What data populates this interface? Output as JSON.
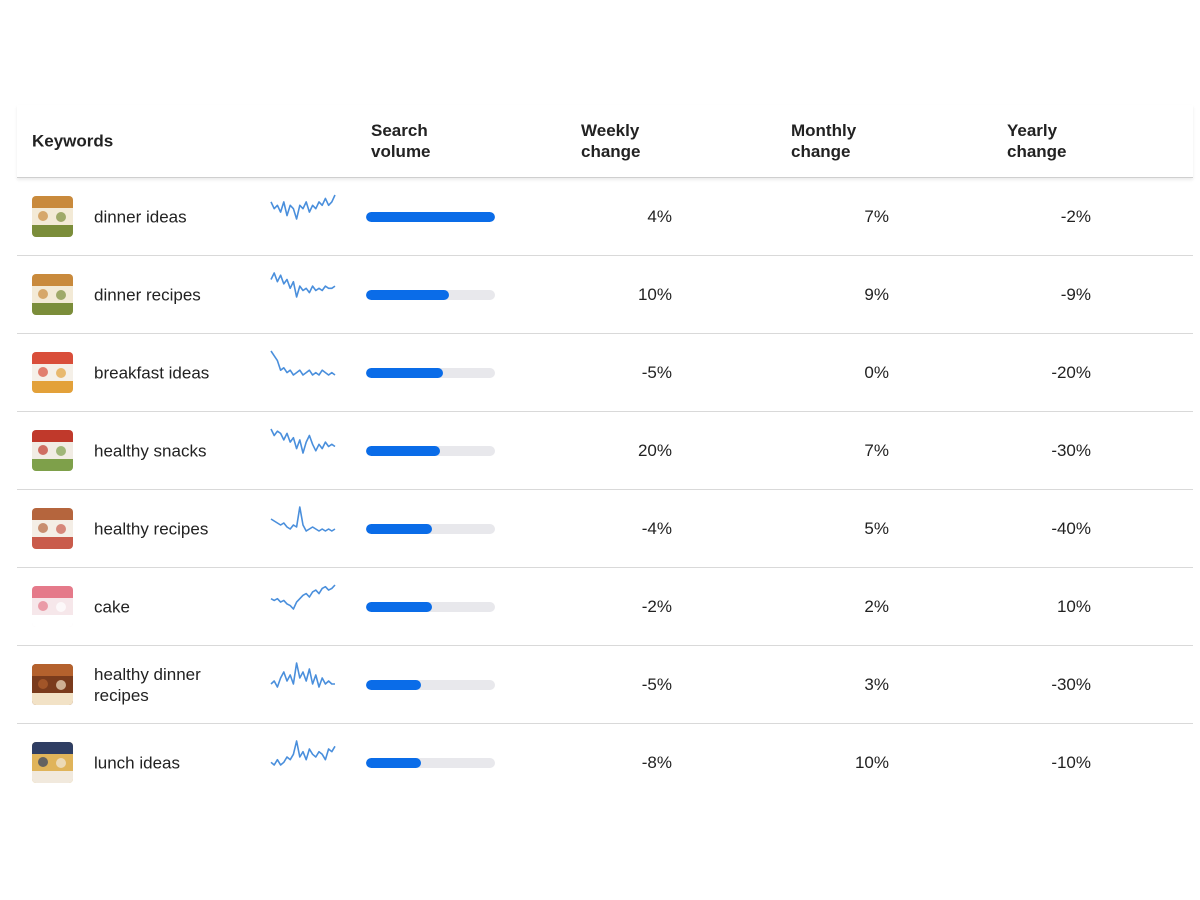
{
  "header": {
    "keywords": "Keywords",
    "search_volume": "Search\nvolume",
    "weekly_change": "Weekly\nchange",
    "monthly_change": "Monthly\nchange",
    "yearly_change": "Yearly\nchange"
  },
  "colors": {
    "accent": "#0a6ce8",
    "track": "#e8e8ec",
    "sparkline": "#4a8fdc"
  },
  "rows": [
    {
      "keyword": "dinner ideas",
      "volume_fraction": 1.0,
      "weekly": "4%",
      "monthly": "7%",
      "yearly": "-2%",
      "thumb_icon": "dinner-ideas-thumbnail-icon",
      "thumb_colors": [
        "#c98a3c",
        "#f3ead6",
        "#7b8d3a"
      ],
      "trend": [
        5,
        7,
        6,
        8,
        5,
        9,
        6,
        7,
        10,
        6,
        7,
        5,
        8,
        6,
        7,
        5,
        6,
        4,
        6,
        5,
        3
      ]
    },
    {
      "keyword": "dinner recipes",
      "volume_fraction": 0.64,
      "weekly": "10%",
      "monthly": "9%",
      "yearly": "-9%",
      "thumb_icon": "dinner-recipes-thumbnail-icon",
      "thumb_colors": [
        "#c98a3c",
        "#f3ead6",
        "#7b8d3a"
      ],
      "trend": [
        4,
        1,
        5,
        2,
        6,
        4,
        8,
        5,
        12,
        7,
        9,
        8,
        10,
        7,
        9,
        8,
        9,
        7,
        8,
        8,
        7
      ]
    },
    {
      "keyword": "breakfast ideas",
      "volume_fraction": 0.6,
      "weekly": "-5%",
      "monthly": "0%",
      "yearly": "-20%",
      "thumb_icon": "breakfast-ideas-thumbnail-icon",
      "thumb_colors": [
        "#d94e3a",
        "#f5f0e8",
        "#e3a13a"
      ],
      "trend": [
        1,
        3,
        5,
        9,
        8,
        10,
        9,
        11,
        10,
        9,
        11,
        10,
        9,
        11,
        10,
        11,
        9,
        10,
        11,
        10,
        11
      ]
    },
    {
      "keyword": "healthy snacks",
      "volume_fraction": 0.57,
      "weekly": "20%",
      "monthly": "7%",
      "yearly": "-30%",
      "thumb_icon": "healthy-snacks-thumbnail-icon",
      "thumb_colors": [
        "#c0392b",
        "#f1ece4",
        "#7ea04a"
      ],
      "trend": [
        3,
        6,
        4,
        5,
        8,
        5,
        9,
        7,
        12,
        8,
        14,
        9,
        6,
        10,
        13,
        10,
        12,
        9,
        11,
        10,
        11
      ]
    },
    {
      "keyword": "healthy recipes",
      "volume_fraction": 0.51,
      "weekly": "-4%",
      "monthly": "5%",
      "yearly": "-40%",
      "thumb_icon": "healthy-recipes-thumbnail-icon",
      "thumb_colors": [
        "#b5653d",
        "#f4eee6",
        "#c95b4b"
      ],
      "trend": [
        9,
        10,
        11,
        12,
        11,
        13,
        14,
        12,
        13,
        3,
        12,
        15,
        14,
        13,
        14,
        15,
        14,
        15,
        14,
        15,
        14
      ]
    },
    {
      "keyword": "cake",
      "volume_fraction": 0.51,
      "weekly": "-2%",
      "monthly": "2%",
      "yearly": "10%",
      "thumb_icon": "cake-thumbnail-icon",
      "thumb_colors": [
        "#e57a8a",
        "#f6e7ea",
        "#ffffff"
      ],
      "trend": [
        10,
        11,
        10,
        12,
        11,
        13,
        14,
        16,
        12,
        10,
        8,
        7,
        9,
        6,
        5,
        7,
        4,
        3,
        5,
        4,
        2
      ]
    },
    {
      "keyword": "healthy dinner recipes",
      "volume_fraction": 0.43,
      "weekly": "-5%",
      "monthly": "3%",
      "yearly": "-30%",
      "thumb_icon": "healthy-dinner-recipes-thumbnail-icon",
      "thumb_colors": [
        "#b4612d",
        "#7a3b1c",
        "#f2e2c6"
      ],
      "trend": [
        9,
        8,
        10,
        7,
        5,
        8,
        6,
        9,
        2,
        7,
        5,
        8,
        4,
        9,
        6,
        10,
        7,
        9,
        8,
        9,
        9
      ]
    },
    {
      "keyword": "lunch ideas",
      "volume_fraction": 0.43,
      "weekly": "-8%",
      "monthly": "10%",
      "yearly": "-10%",
      "thumb_icon": "lunch-ideas-thumbnail-icon",
      "thumb_colors": [
        "#2f3e63",
        "#e0b45a",
        "#f1e9dd"
      ],
      "trend": [
        11,
        12,
        10,
        12,
        11,
        9,
        10,
        8,
        3,
        9,
        7,
        10,
        6,
        8,
        9,
        7,
        8,
        10,
        6,
        7,
        5
      ]
    }
  ]
}
